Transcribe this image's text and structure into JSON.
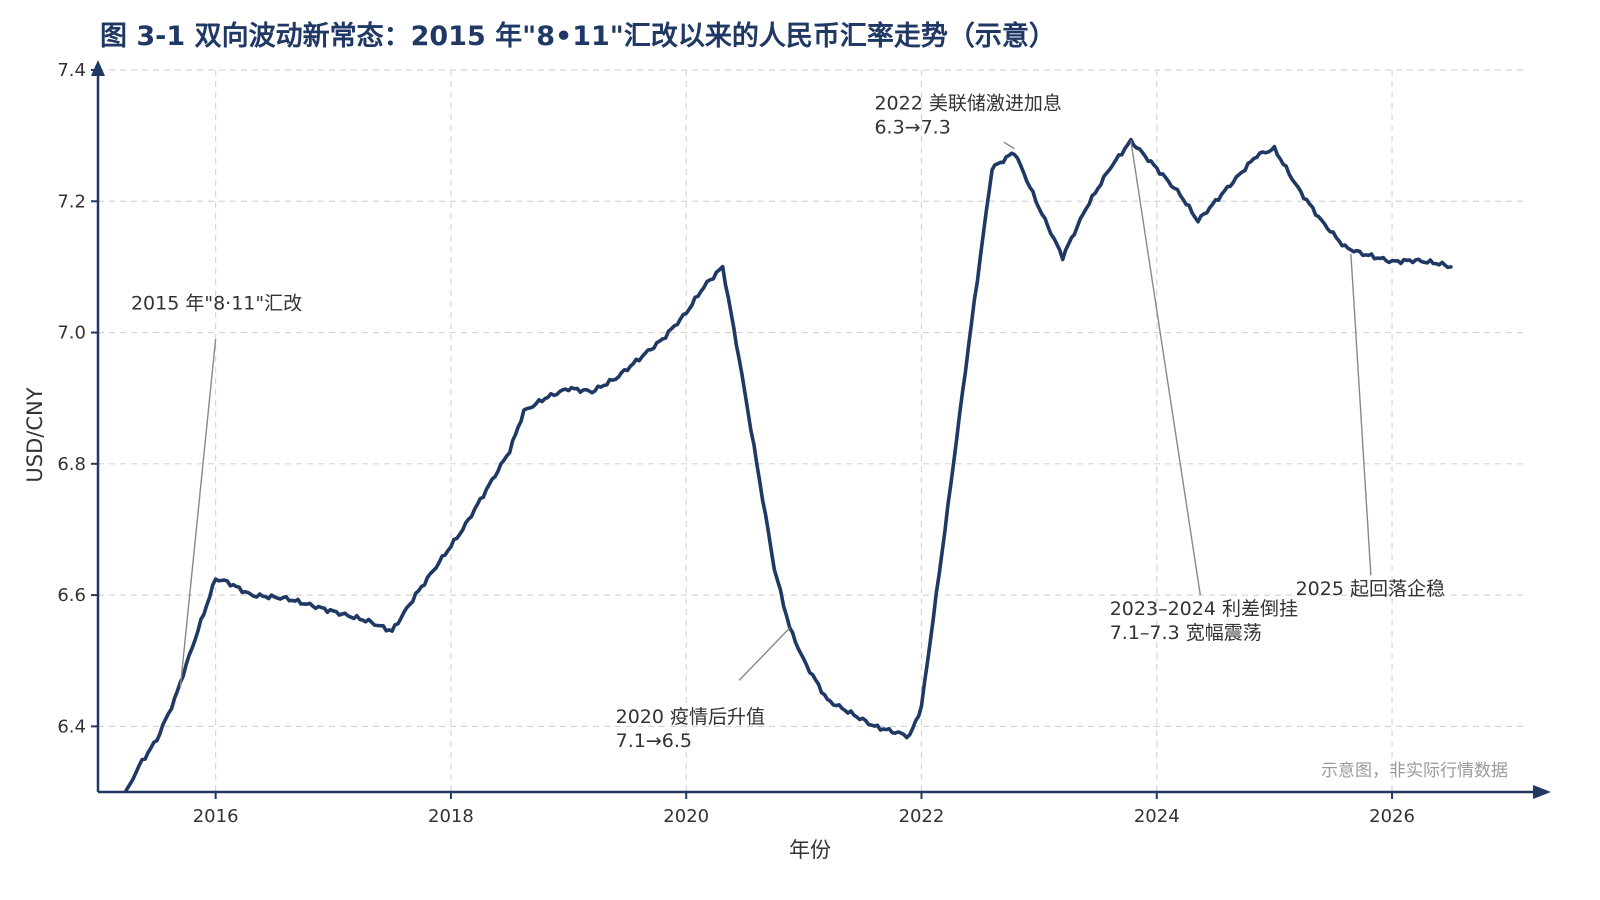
{
  "chart_data": {
    "type": "line",
    "title": "图 3-1 双向波动新常态：2015 年\"8•11\"汇改以来的人民币汇率走势（示意）",
    "xlabel": "年份",
    "ylabel": "USD/CNY",
    "xlim": [
      2015.0,
      2027.3
    ],
    "ylim": [
      6.3,
      7.4
    ],
    "xticks": [
      "2016",
      "2018",
      "2020",
      "2022",
      "2024",
      "2026"
    ],
    "yticks": [
      "6.4",
      "6.6",
      "6.8",
      "7.0",
      "7.2",
      "7.4"
    ],
    "grid": true,
    "series": [
      {
        "color": "#1f3864",
        "x": [
          2015.24,
          2015.35,
          2015.5,
          2015.65,
          2015.8,
          2016.0,
          2016.1,
          2016.3,
          2016.6,
          2016.9,
          2017.1,
          2017.3,
          2017.5,
          2017.7,
          2017.9,
          2018.1,
          2018.3,
          2018.5,
          2018.62,
          2018.8,
          2019.0,
          2019.2,
          2019.4,
          2019.6,
          2019.8,
          2020.0,
          2020.15,
          2020.31,
          2020.45,
          2020.6,
          2020.75,
          2020.88,
          2021.0,
          2021.2,
          2021.4,
          2021.6,
          2021.8,
          2021.9,
          2022.0,
          2022.2,
          2022.4,
          2022.6,
          2022.79,
          2023.0,
          2023.2,
          2023.4,
          2023.6,
          2023.78,
          2024.0,
          2024.2,
          2024.35,
          2024.5,
          2024.7,
          2024.85,
          2025.0,
          2025.2,
          2025.4,
          2025.6,
          2025.75,
          2026.0,
          2026.2,
          2026.4,
          2026.5
        ],
        "y": [
          6.3,
          6.34,
          6.38,
          6.44,
          6.52,
          6.625,
          6.62,
          6.6,
          6.595,
          6.58,
          6.57,
          6.56,
          6.545,
          6.6,
          6.65,
          6.7,
          6.76,
          6.82,
          6.88,
          6.9,
          6.915,
          6.91,
          6.93,
          6.96,
          6.99,
          7.03,
          7.07,
          7.1,
          6.96,
          6.8,
          6.64,
          6.55,
          6.5,
          6.44,
          6.42,
          6.4,
          6.39,
          6.385,
          6.43,
          6.7,
          6.98,
          7.25,
          7.275,
          7.19,
          7.115,
          7.19,
          7.25,
          7.292,
          7.25,
          7.21,
          7.17,
          7.2,
          7.24,
          7.27,
          7.28,
          7.22,
          7.17,
          7.13,
          7.12,
          7.108,
          7.11,
          7.105,
          7.1
        ]
      }
    ],
    "annotations": [
      {
        "lines": [
          "2015 年\"8·11\"汇改"
        ],
        "point": [
          2015.7,
          6.46
        ],
        "text_pos": [
          2015.28,
          7.035
        ],
        "line_end": [
          2016.0,
          6.99
        ],
        "anchor": "start"
      },
      {
        "lines": [
          "2022 美联储激进加息",
          "6.3→7.3"
        ],
        "point": [
          2022.79,
          7.28
        ],
        "text_pos": [
          2021.6,
          7.34
        ],
        "line_end": [
          2022.7,
          7.29
        ],
        "anchor": "start"
      },
      {
        "lines": [
          "2020 疫情后升值",
          "7.1→6.5"
        ],
        "point": [
          2020.88,
          6.55
        ],
        "text_pos": [
          2019.4,
          6.405
        ],
        "line_end": [
          2020.45,
          6.47
        ],
        "anchor": "start"
      },
      {
        "lines": [
          "2023–2024 利差倒挂",
          "7.1–7.3 宽幅震荡"
        ],
        "point": [
          2023.78,
          7.292
        ],
        "text_pos": [
          2023.6,
          6.57
        ],
        "line_end": [
          2024.37,
          6.6
        ],
        "anchor": "start"
      },
      {
        "lines": [
          "2025 起回落企稳"
        ],
        "point": [
          2025.65,
          7.12
        ],
        "text_pos": [
          2026.45,
          6.6
        ],
        "line_end": [
          2025.82,
          6.63
        ],
        "anchor": "end"
      }
    ],
    "note": "示意图，非实际行情数据"
  }
}
